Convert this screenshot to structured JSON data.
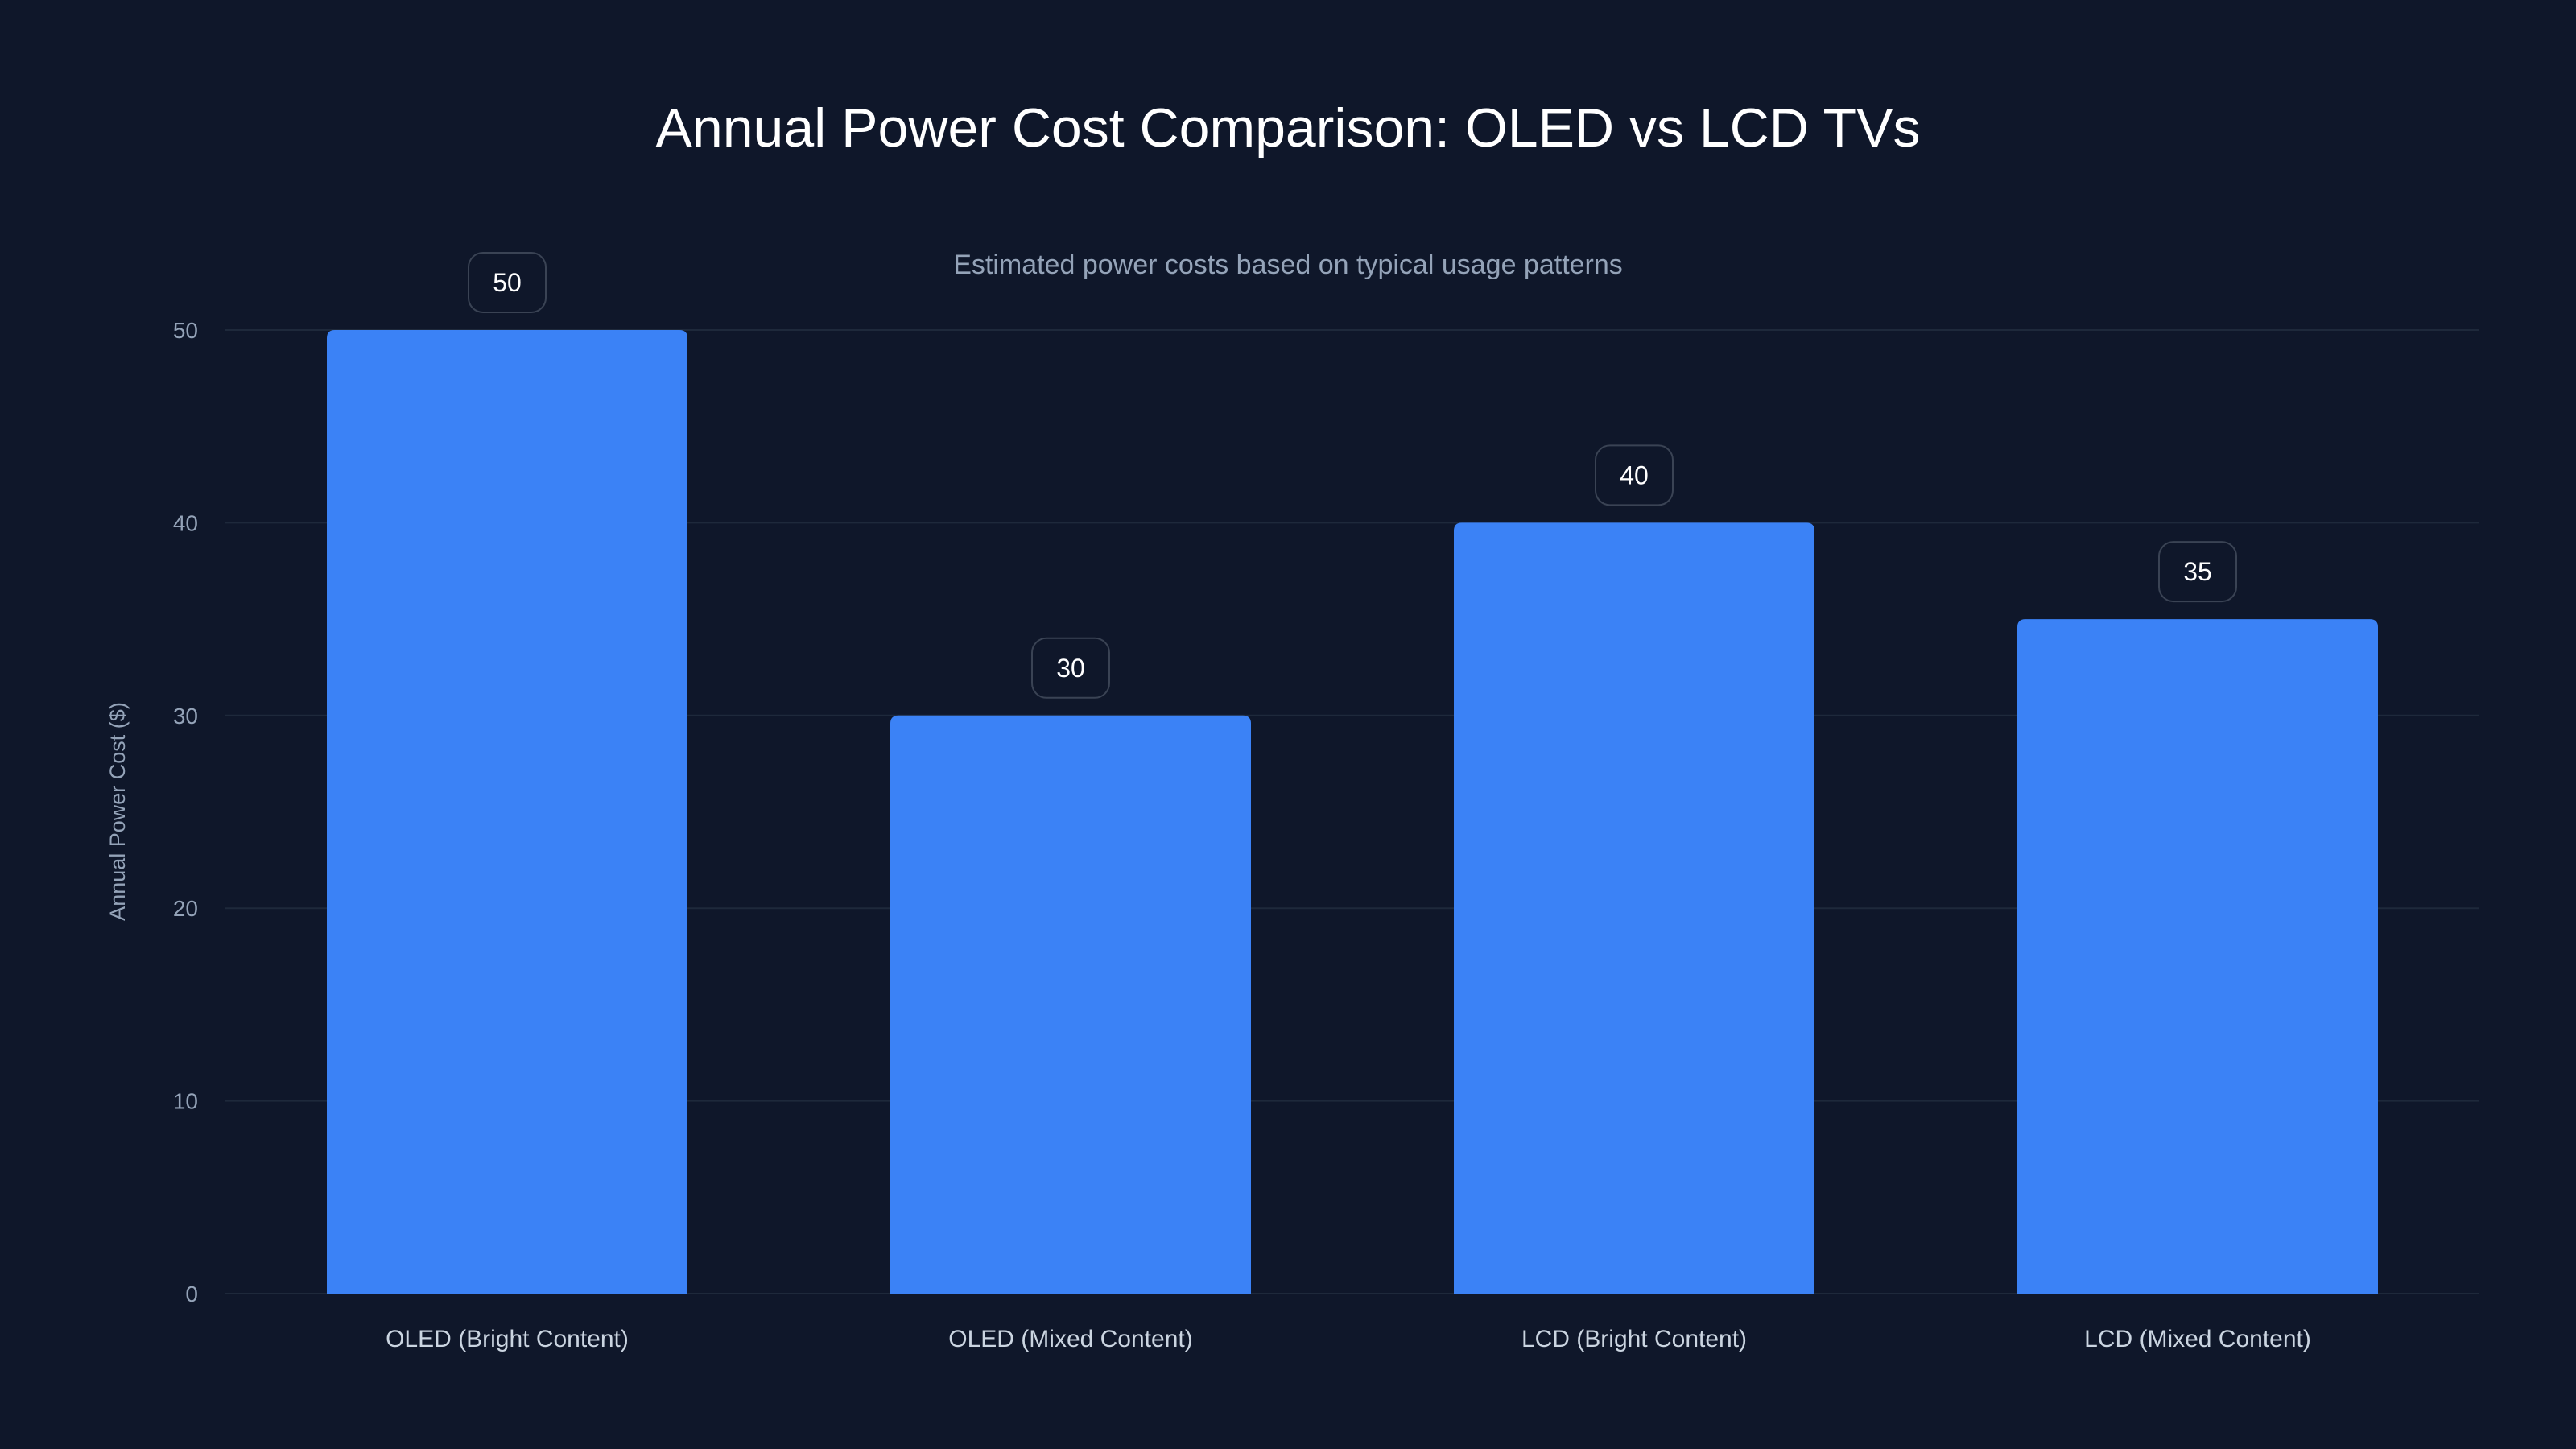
{
  "chart_data": {
    "type": "bar",
    "title": "Annual Power Cost Comparison: OLED vs LCD TVs",
    "subtitle": "Estimated power costs based on typical usage patterns",
    "xlabel": "",
    "ylabel": "Annual Power Cost ($)",
    "categories": [
      "OLED (Bright Content)",
      "OLED (Mixed Content)",
      "LCD (Bright Content)",
      "LCD (Mixed Content)"
    ],
    "values": [
      50,
      30,
      40,
      35
    ],
    "data_labels": [
      "50",
      "30",
      "40",
      "35"
    ],
    "ylim": [
      0,
      50
    ],
    "yticks": [
      0,
      10,
      20,
      30,
      40,
      50
    ],
    "grid": true,
    "legend": "none",
    "colors": {
      "background": "#0f172a",
      "bar": "#3b82f6",
      "grid": "#1e293b",
      "tick": "#94a3b8",
      "text": "#ffffff",
      "label_border": "#3a4354"
    }
  }
}
